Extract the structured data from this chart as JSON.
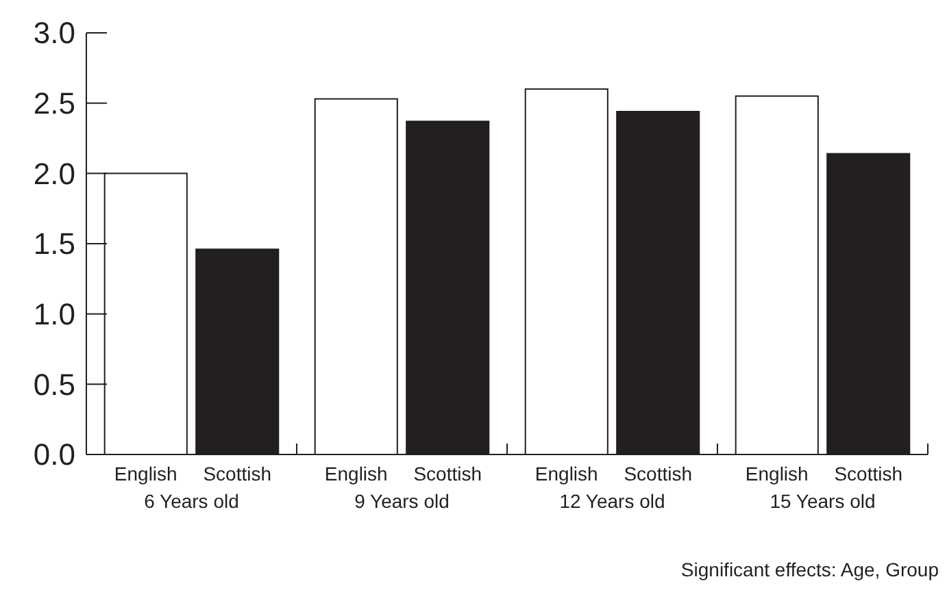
{
  "chart_data": {
    "type": "bar",
    "categories": [
      "6 Years old",
      "9 Years old",
      "12 Years old",
      "15 Years old"
    ],
    "series": [
      {
        "name": "English",
        "color": "#ffffff",
        "values": [
          2.0,
          2.53,
          2.6,
          2.55
        ]
      },
      {
        "name": "Scottish",
        "color": "#231f20",
        "values": [
          1.46,
          2.37,
          2.44,
          2.14
        ]
      }
    ],
    "ylim": [
      0,
      3
    ],
    "yticks": [
      {
        "value": 0,
        "label": "0.0"
      },
      {
        "value": 0.5,
        "label": "0.5"
      },
      {
        "value": 1,
        "label": "1.0"
      },
      {
        "value": 1.5,
        "label": "1.5"
      },
      {
        "value": 2,
        "label": "2.0"
      },
      {
        "value": 2.5,
        "label": "2.5"
      },
      {
        "value": 3,
        "label": "3.0"
      }
    ],
    "grid": false,
    "legend": false,
    "annotations": [
      "Significant effects: Age, Group"
    ]
  }
}
